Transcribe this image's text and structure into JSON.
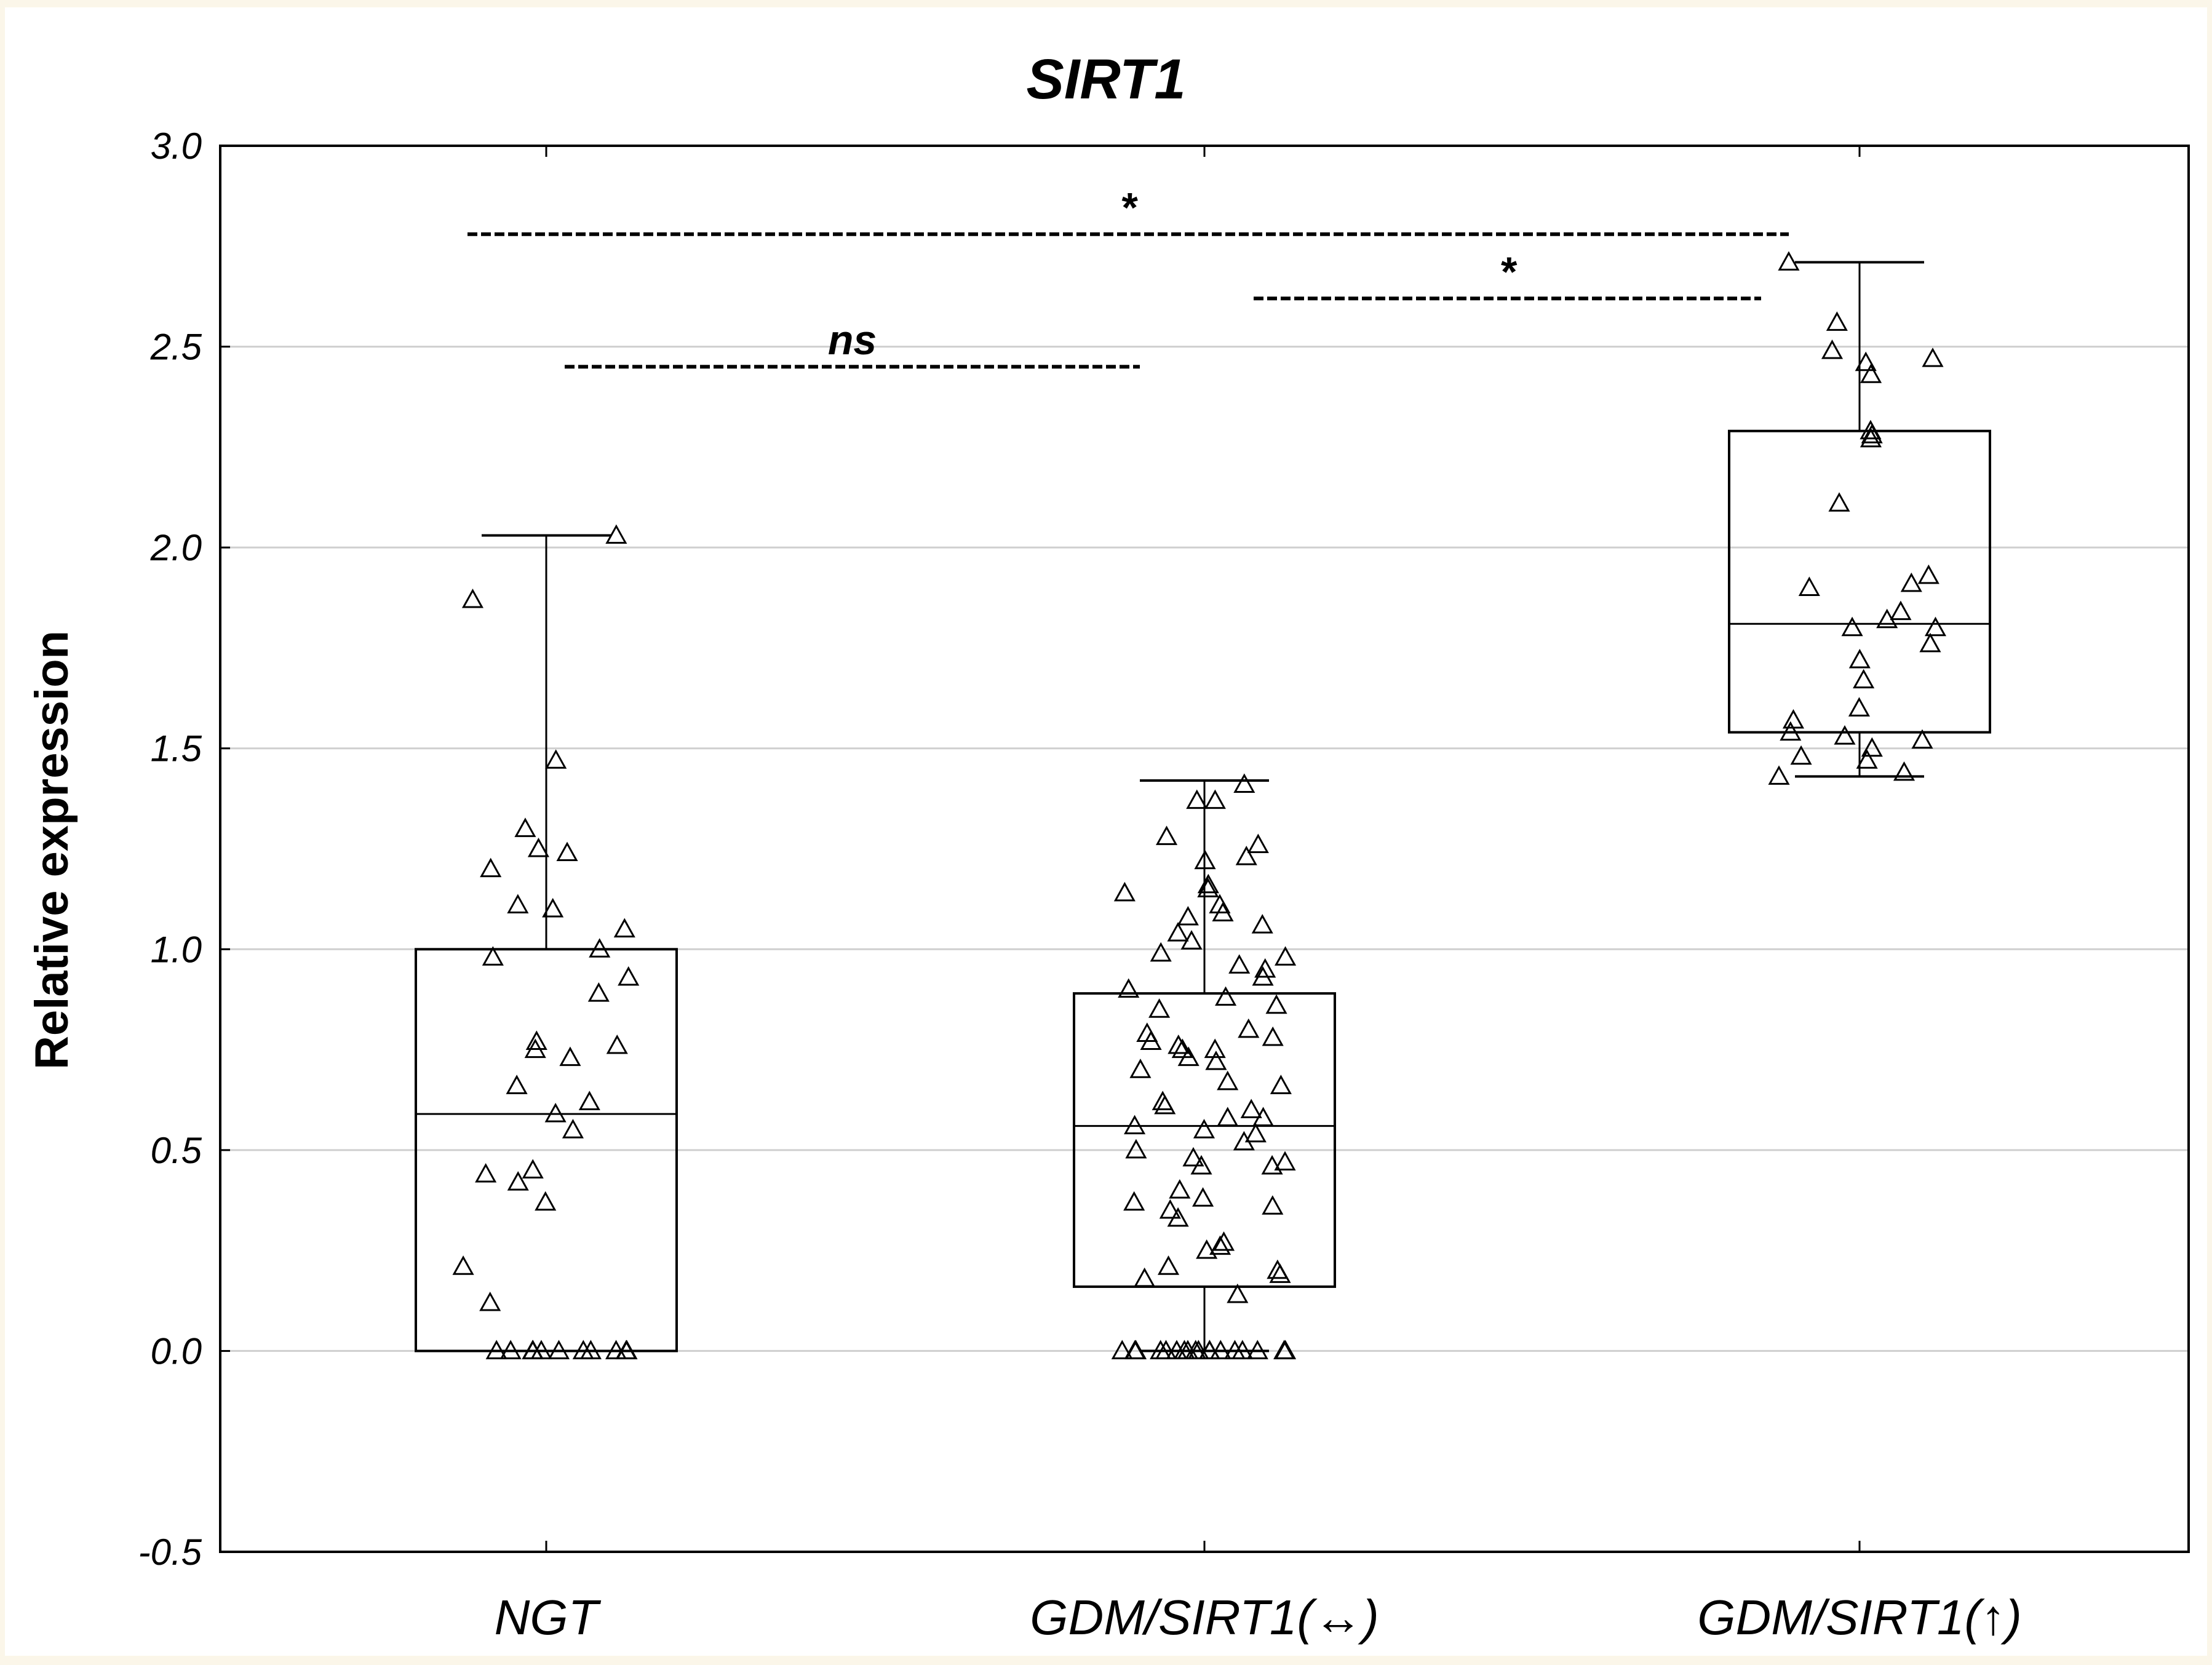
{
  "chart_data": {
    "type": "box",
    "title": "SIRT1",
    "ylabel": "Relative expression",
    "xlabel": "",
    "ylim": [
      -0.5,
      3.0
    ],
    "yticks": [
      "3.0",
      "2.5",
      "2.0",
      "1.5",
      "1.0",
      "0.5",
      "0.0",
      "-0.5"
    ],
    "yticks_values": [
      3.0,
      2.5,
      2.0,
      1.5,
      1.0,
      0.5,
      0.0,
      -0.5
    ],
    "grid": true,
    "categories": [
      "NGT",
      "GDM/SIRT1(↔)",
      "GDM/SIRT1(↑)"
    ],
    "boxes": [
      {
        "name": "NGT",
        "q1": 0.0,
        "median": 0.59,
        "q3": 1.0,
        "whisker_low": 0.0,
        "whisker_high": 2.03,
        "points": [
          2.03,
          1.87,
          1.47,
          1.3,
          1.25,
          1.24,
          1.2,
          1.11,
          1.1,
          1.05,
          1.0,
          0.98,
          0.93,
          0.89,
          0.77,
          0.76,
          0.75,
          0.73,
          0.66,
          0.62,
          0.59,
          0.55,
          0.45,
          0.44,
          0.42,
          0.37,
          0.21,
          0.12,
          0,
          0,
          0,
          0,
          0,
          0,
          0,
          0,
          0,
          0,
          0
        ]
      },
      {
        "name": "GDM/SIRT1(↔)",
        "q1": 0.16,
        "median": 0.56,
        "q3": 0.89,
        "whisker_low": 0.0,
        "whisker_high": 1.42,
        "points": [
          1.41,
          1.37,
          1.37,
          1.28,
          1.26,
          1.23,
          1.22,
          1.16,
          1.15,
          1.14,
          1.11,
          1.09,
          1.08,
          1.06,
          1.04,
          1.02,
          0.99,
          0.98,
          0.96,
          0.95,
          0.93,
          0.9,
          0.88,
          0.86,
          0.85,
          0.8,
          0.79,
          0.78,
          0.77,
          0.76,
          0.75,
          0.75,
          0.73,
          0.72,
          0.7,
          0.67,
          0.66,
          0.62,
          0.61,
          0.6,
          0.58,
          0.58,
          0.56,
          0.55,
          0.54,
          0.52,
          0.5,
          0.48,
          0.47,
          0.46,
          0.46,
          0.4,
          0.38,
          0.37,
          0.36,
          0.35,
          0.33,
          0.27,
          0.26,
          0.25,
          0.21,
          0.2,
          0.19,
          0.18,
          0.14,
          0,
          0,
          0,
          0,
          0,
          0,
          0,
          0,
          0,
          0,
          0,
          0,
          0,
          0,
          0,
          0,
          0,
          0
        ]
      },
      {
        "name": "GDM/SIRT1(↑)",
        "q1": 1.54,
        "median": 1.81,
        "q3": 2.29,
        "whisker_low": 1.43,
        "whisker_high": 2.71,
        "points": [
          2.71,
          2.56,
          2.49,
          2.47,
          2.46,
          2.43,
          2.29,
          2.28,
          2.27,
          2.11,
          1.93,
          1.91,
          1.9,
          1.84,
          1.82,
          1.8,
          1.8,
          1.76,
          1.72,
          1.67,
          1.6,
          1.57,
          1.54,
          1.53,
          1.52,
          1.5,
          1.48,
          1.47,
          1.44,
          1.43
        ]
      }
    ],
    "comparisons": [
      {
        "from": "NGT",
        "to": "GDM/SIRT1(↔)",
        "label": "ns",
        "y": 2.45
      },
      {
        "from": "GDM/SIRT1(↔)",
        "to": "GDM/SIRT1(↑)",
        "label": "*",
        "y": 2.62
      },
      {
        "from": "NGT",
        "to": "GDM/SIRT1(↑)",
        "label": "*",
        "y": 2.78
      }
    ],
    "marker": "triangle-open",
    "colors": {
      "axis": "#000000",
      "grid": "#cfcfcf",
      "background": "#ffffff",
      "outer": "#fbf6e9"
    }
  }
}
